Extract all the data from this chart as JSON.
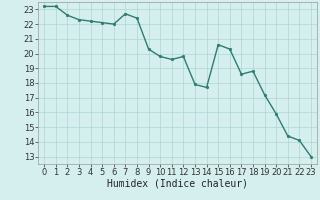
{
  "x": [
    0,
    1,
    2,
    3,
    4,
    5,
    6,
    7,
    8,
    9,
    10,
    11,
    12,
    13,
    14,
    15,
    16,
    17,
    18,
    19,
    20,
    21,
    22,
    23
  ],
  "y": [
    23.2,
    23.2,
    22.6,
    22.3,
    22.2,
    22.1,
    22.0,
    22.7,
    22.4,
    20.3,
    19.8,
    19.6,
    19.8,
    17.9,
    17.7,
    20.6,
    20.3,
    18.6,
    18.8,
    17.2,
    15.9,
    14.4,
    14.1,
    13.0
  ],
  "line_color": "#2d7d72",
  "marker": "o",
  "marker_size": 2.0,
  "line_width": 1.0,
  "bg_color": "#d5efef",
  "grid_color": "#aed4d4",
  "xlabel": "Humidex (Indice chaleur)",
  "xlabel_fontsize": 7,
  "tick_fontsize": 6,
  "ylim": [
    12.5,
    23.5
  ],
  "yticks": [
    13,
    14,
    15,
    16,
    17,
    18,
    19,
    20,
    21,
    22,
    23
  ],
  "xticks": [
    0,
    1,
    2,
    3,
    4,
    5,
    6,
    7,
    8,
    9,
    10,
    11,
    12,
    13,
    14,
    15,
    16,
    17,
    18,
    19,
    20,
    21,
    22,
    23
  ],
  "xlim": [
    -0.5,
    23.5
  ]
}
